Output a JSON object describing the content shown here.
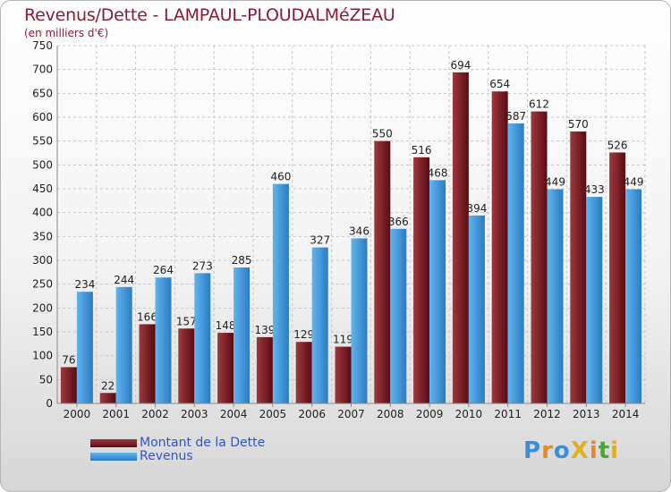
{
  "title": "Revenus/Dette - LAMPAUL-PLOUDALMéZEAU",
  "subtitle": "(en milliers d'€)",
  "logo": {
    "text": "ProXiti",
    "colors": [
      "#3a8fd8",
      "#e58a2a",
      "#3a8fd8",
      "#e0b020",
      "#e58a2a",
      "#4aa83a",
      "#e0b020"
    ]
  },
  "colors": {
    "dette_dark": "#5c0a12",
    "dette_light": "#9c3a3e",
    "revenus_dark": "#2a7cc4",
    "revenus_light": "#62b4ec",
    "title": "#8b1a35",
    "legend_text": "#3355cc"
  },
  "chart_data": {
    "type": "bar",
    "title": "Revenus/Dette - LAMPAUL-PLOUDALMéZEAU",
    "ylabel": "(en milliers d'€)",
    "ylim": [
      0,
      750
    ],
    "yticks": [
      0,
      50,
      100,
      150,
      200,
      250,
      300,
      350,
      400,
      450,
      500,
      550,
      600,
      650,
      700,
      750
    ],
    "grid": true,
    "legend": "bottom-left",
    "categories": [
      "2000",
      "2001",
      "2002",
      "2003",
      "2004",
      "2005",
      "2006",
      "2007",
      "2008",
      "2009",
      "2010",
      "2011",
      "2012",
      "2013",
      "2014"
    ],
    "series": [
      {
        "name": "Montant de la Dette",
        "values": [
          76,
          22,
          166,
          157,
          148,
          139,
          129,
          119,
          550,
          516,
          694,
          654,
          612,
          570,
          526
        ]
      },
      {
        "name": "Revenus",
        "values": [
          234,
          244,
          264,
          273,
          285,
          460,
          327,
          346,
          366,
          468,
          394,
          587,
          449,
          433,
          449
        ]
      }
    ]
  }
}
